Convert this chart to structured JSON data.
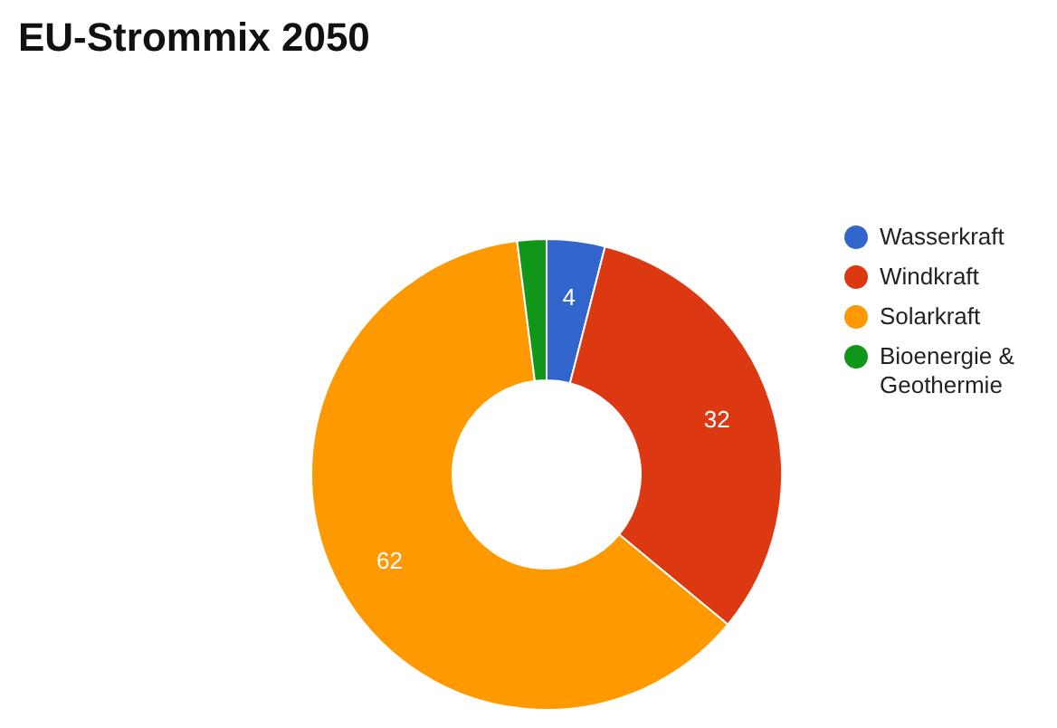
{
  "chart_data": {
    "type": "donut",
    "title": "EU-Strommix 2050",
    "categories": [
      "Wasserkraft",
      "Windkraft",
      "Solarkraft",
      "Bioenergie & Geothermie"
    ],
    "values": [
      4,
      32,
      62,
      2
    ],
    "colors": [
      "#3366cc",
      "#dc3912",
      "#ff9900",
      "#109618"
    ],
    "value_labels": [
      "4",
      "32",
      "62",
      null
    ],
    "legend": "right"
  }
}
